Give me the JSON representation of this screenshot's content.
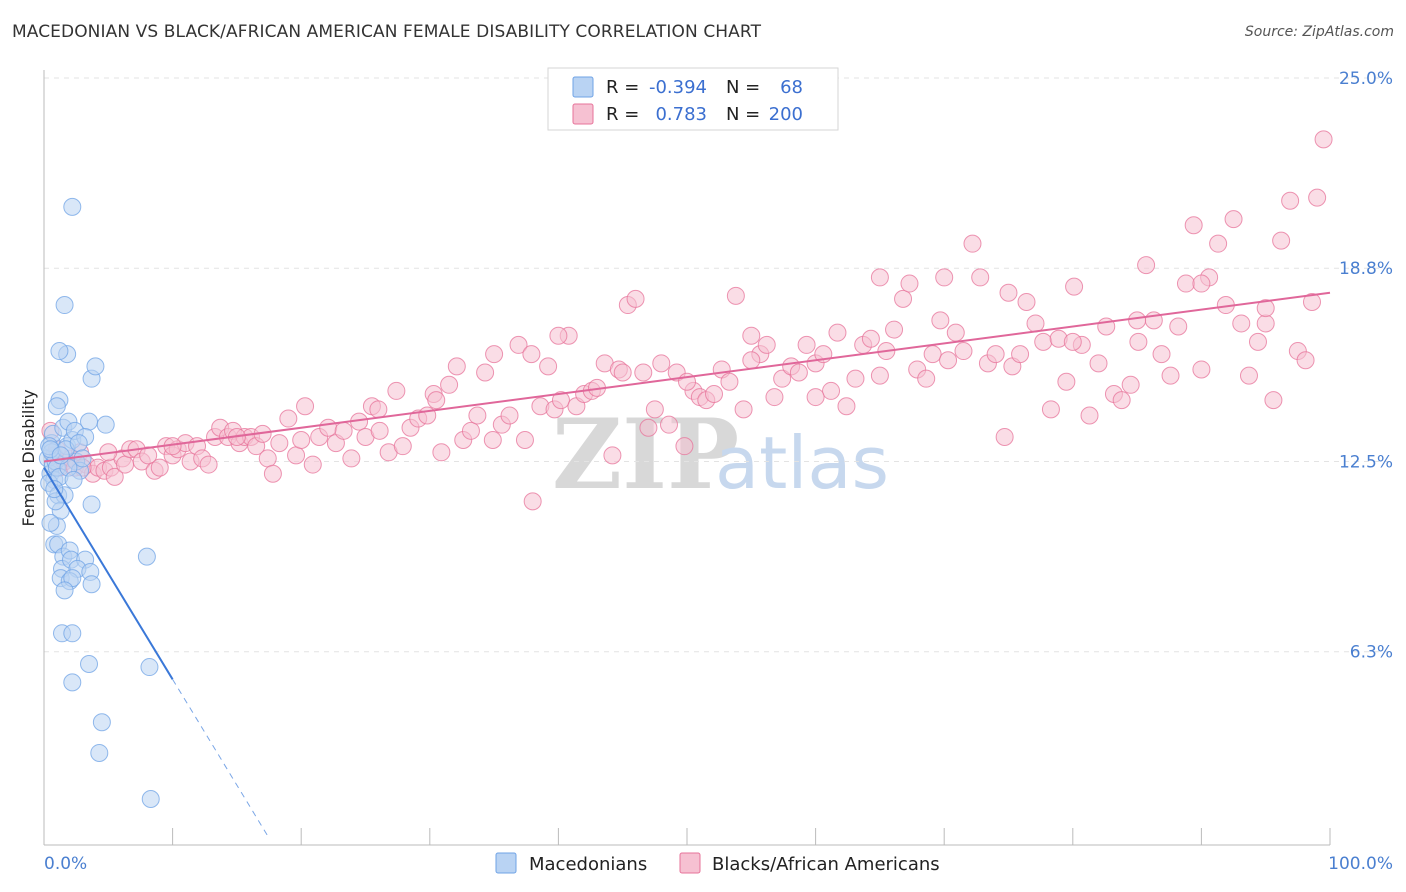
{
  "header": {
    "title": "MACEDONIAN VS BLACK/AFRICAN AMERICAN FEMALE DISABILITY CORRELATION CHART",
    "source": "Source: ZipAtlas.com"
  },
  "watermark": {
    "zip": "ZIP",
    "atlas": "atlas"
  },
  "chart_data": {
    "type": "scatter",
    "title": "MACEDONIAN VS BLACK/AFRICAN AMERICAN FEMALE DISABILITY CORRELATION CHART",
    "xlabel": "",
    "ylabel": "Female Disability",
    "xlim": [
      0,
      100
    ],
    "ylim": [
      0,
      25.0
    ],
    "x_tick_labels": [
      "0.0%",
      "100.0%"
    ],
    "y_ticks": [
      6.3,
      12.5,
      18.8,
      25.0
    ],
    "y_tick_labels": [
      "6.3%",
      "12.5%",
      "18.8%",
      "25.0%"
    ],
    "grid": true,
    "legend": {
      "position": "top-center",
      "rows": [
        {
          "r_label": "R = ",
          "r_value": "-0.394",
          "n_label": "N = ",
          "n_value": "68",
          "color": "#a9c8f0"
        },
        {
          "r_label": "R = ",
          "r_value": "0.783",
          "n_label": "N = ",
          "n_value": "200",
          "color": "#f6b8cc"
        }
      ]
    },
    "bottom_legend": [
      "Macedonians",
      "Blacks/African Americans"
    ],
    "series": [
      {
        "name": "Macedonians",
        "color": "#6fa3e6",
        "fill": "#b9d3f3",
        "trend": {
          "x0": 0.0,
          "y0": 12.3,
          "x1": 10.0,
          "y1": 5.4,
          "dash_to_x": 17.5
        },
        "points": [
          [
            0.3,
            12.6
          ],
          [
            0.5,
            12.1
          ],
          [
            0.6,
            13.1
          ],
          [
            0.7,
            12.4
          ],
          [
            0.8,
            11.9
          ],
          [
            0.4,
            11.8
          ],
          [
            0.9,
            12.5
          ],
          [
            0.6,
            12.8
          ],
          [
            1.0,
            12.3
          ],
          [
            1.2,
            12.0
          ],
          [
            0.7,
            13.4
          ],
          [
            1.5,
            13.6
          ],
          [
            1.1,
            11.4
          ],
          [
            1.6,
            11.4
          ],
          [
            1.8,
            13.0
          ],
          [
            2.2,
            13.2
          ],
          [
            2.5,
            12.5
          ],
          [
            1.9,
            13.8
          ],
          [
            1.2,
            14.5
          ],
          [
            1.0,
            14.3
          ],
          [
            3.5,
            13.8
          ],
          [
            2.4,
            13.5
          ],
          [
            3.2,
            13.3
          ],
          [
            4.8,
            13.7
          ],
          [
            3.7,
            15.2
          ],
          [
            4.0,
            15.6
          ],
          [
            1.8,
            16.0
          ],
          [
            1.2,
            16.1
          ],
          [
            1.6,
            17.6
          ],
          [
            2.2,
            20.8
          ],
          [
            3.7,
            11.1
          ],
          [
            1.0,
            10.4
          ],
          [
            1.3,
            10.9
          ],
          [
            0.8,
            9.8
          ],
          [
            1.1,
            9.8
          ],
          [
            1.5,
            9.4
          ],
          [
            2.0,
            9.6
          ],
          [
            1.4,
            9.0
          ],
          [
            2.1,
            9.3
          ],
          [
            3.2,
            9.3
          ],
          [
            2.6,
            9.0
          ],
          [
            3.6,
            8.9
          ],
          [
            1.3,
            8.7
          ],
          [
            2.0,
            8.6
          ],
          [
            2.2,
            8.7
          ],
          [
            3.7,
            8.5
          ],
          [
            1.6,
            8.3
          ],
          [
            8.0,
            9.4
          ],
          [
            1.4,
            6.9
          ],
          [
            2.2,
            6.9
          ],
          [
            3.5,
            5.9
          ],
          [
            8.2,
            5.8
          ],
          [
            2.2,
            5.3
          ],
          [
            4.5,
            4.0
          ],
          [
            4.3,
            3.0
          ],
          [
            8.3,
            1.5
          ],
          [
            0.5,
            10.5
          ],
          [
            0.9,
            11.2
          ],
          [
            0.4,
            13.0
          ],
          [
            1.7,
            12.9
          ],
          [
            2.8,
            12.2
          ],
          [
            0.5,
            12.9
          ],
          [
            1.9,
            12.3
          ],
          [
            2.7,
            13.1
          ],
          [
            0.8,
            11.6
          ],
          [
            1.3,
            12.7
          ],
          [
            3.0,
            12.6
          ],
          [
            2.3,
            11.9
          ]
        ]
      },
      {
        "name": "Blacks/African Americans",
        "color": "#e7739a",
        "fill": "#f6c1d2",
        "trend": {
          "x0": 0.0,
          "y0": 12.5,
          "x1": 100.0,
          "y1": 18.0
        },
        "points": [
          [
            0.5,
            13.5
          ],
          [
            0.8,
            12.7
          ],
          [
            1.2,
            12.3
          ],
          [
            1.6,
            12.5
          ],
          [
            2.1,
            12.6
          ],
          [
            2.4,
            12.3
          ],
          [
            2.8,
            12.8
          ],
          [
            3.3,
            12.4
          ],
          [
            3.8,
            12.1
          ],
          [
            4.2,
            12.3
          ],
          [
            4.7,
            12.2
          ],
          [
            5.2,
            12.3
          ],
          [
            5.5,
            12.0
          ],
          [
            6.1,
            12.6
          ],
          [
            6.3,
            12.4
          ],
          [
            6.7,
            12.9
          ],
          [
            7.2,
            12.9
          ],
          [
            7.6,
            12.5
          ],
          [
            8.1,
            12.7
          ],
          [
            8.6,
            12.2
          ],
          [
            9.0,
            12.3
          ],
          [
            9.5,
            13.0
          ],
          [
            10.0,
            12.7
          ],
          [
            10.4,
            12.9
          ],
          [
            11.0,
            13.1
          ],
          [
            11.4,
            12.5
          ],
          [
            11.9,
            13.0
          ],
          [
            12.3,
            12.6
          ],
          [
            12.8,
            12.4
          ],
          [
            13.3,
            13.3
          ],
          [
            13.7,
            13.6
          ],
          [
            14.3,
            13.3
          ],
          [
            14.7,
            13.5
          ],
          [
            15.2,
            13.1
          ],
          [
            15.6,
            13.3
          ],
          [
            16.1,
            13.3
          ],
          [
            16.5,
            13.0
          ],
          [
            17.0,
            13.4
          ],
          [
            17.4,
            12.6
          ],
          [
            17.8,
            12.1
          ],
          [
            18.3,
            13.1
          ],
          [
            19.0,
            13.9
          ],
          [
            19.6,
            12.7
          ],
          [
            20.3,
            14.3
          ],
          [
            20.9,
            12.4
          ],
          [
            21.4,
            13.3
          ],
          [
            22.1,
            13.6
          ],
          [
            22.7,
            13.1
          ],
          [
            23.3,
            13.5
          ],
          [
            23.9,
            12.6
          ],
          [
            24.5,
            13.8
          ],
          [
            25.0,
            13.3
          ],
          [
            25.5,
            14.3
          ],
          [
            26.1,
            13.5
          ],
          [
            26.8,
            12.8
          ],
          [
            27.4,
            14.8
          ],
          [
            27.9,
            13.0
          ],
          [
            28.5,
            13.6
          ],
          [
            29.1,
            13.9
          ],
          [
            29.8,
            14.0
          ],
          [
            30.3,
            14.7
          ],
          [
            30.9,
            12.8
          ],
          [
            31.5,
            15.0
          ],
          [
            32.1,
            15.6
          ],
          [
            32.6,
            13.2
          ],
          [
            33.2,
            13.5
          ],
          [
            33.7,
            14.0
          ],
          [
            34.3,
            15.4
          ],
          [
            34.9,
            13.2
          ],
          [
            35.6,
            13.7
          ],
          [
            36.2,
            14.0
          ],
          [
            36.9,
            16.3
          ],
          [
            37.4,
            13.2
          ],
          [
            37.9,
            16.0
          ],
          [
            38.6,
            14.3
          ],
          [
            39.2,
            15.6
          ],
          [
            39.7,
            14.2
          ],
          [
            40.2,
            14.5
          ],
          [
            40.8,
            16.6
          ],
          [
            41.4,
            14.3
          ],
          [
            42.0,
            14.7
          ],
          [
            42.6,
            14.8
          ],
          [
            43.0,
            14.9
          ],
          [
            43.6,
            15.7
          ],
          [
            44.2,
            12.7
          ],
          [
            44.7,
            15.5
          ],
          [
            45.4,
            17.6
          ],
          [
            46.0,
            17.8
          ],
          [
            46.6,
            15.4
          ],
          [
            47.0,
            13.6
          ],
          [
            47.5,
            14.2
          ],
          [
            48.0,
            15.7
          ],
          [
            48.6,
            13.7
          ],
          [
            49.2,
            15.4
          ],
          [
            49.8,
            13.0
          ],
          [
            50.5,
            14.8
          ],
          [
            51.0,
            14.6
          ],
          [
            51.5,
            14.5
          ],
          [
            52.1,
            14.7
          ],
          [
            52.7,
            15.5
          ],
          [
            53.3,
            15.1
          ],
          [
            53.8,
            17.9
          ],
          [
            54.4,
            14.2
          ],
          [
            55.0,
            16.6
          ],
          [
            55.7,
            16.0
          ],
          [
            56.2,
            16.3
          ],
          [
            56.8,
            14.6
          ],
          [
            57.4,
            15.2
          ],
          [
            58.1,
            15.6
          ],
          [
            58.7,
            15.4
          ],
          [
            59.3,
            16.3
          ],
          [
            60.0,
            15.7
          ],
          [
            60.6,
            16.0
          ],
          [
            61.2,
            14.8
          ],
          [
            61.7,
            16.7
          ],
          [
            62.4,
            14.3
          ],
          [
            63.1,
            15.2
          ],
          [
            63.7,
            16.3
          ],
          [
            64.3,
            16.5
          ],
          [
            65.0,
            15.3
          ],
          [
            65.5,
            16.1
          ],
          [
            66.1,
            16.8
          ],
          [
            66.8,
            17.8
          ],
          [
            67.3,
            18.3
          ],
          [
            67.9,
            15.5
          ],
          [
            68.6,
            15.2
          ],
          [
            69.1,
            16.0
          ],
          [
            69.7,
            17.1
          ],
          [
            70.3,
            15.8
          ],
          [
            70.9,
            16.7
          ],
          [
            71.5,
            16.1
          ],
          [
            72.2,
            19.6
          ],
          [
            72.8,
            18.5
          ],
          [
            73.4,
            15.7
          ],
          [
            74.0,
            16.0
          ],
          [
            74.7,
            13.3
          ],
          [
            75.3,
            15.6
          ],
          [
            75.9,
            16.0
          ],
          [
            76.4,
            17.7
          ],
          [
            77.1,
            17.0
          ],
          [
            77.7,
            16.4
          ],
          [
            78.3,
            14.2
          ],
          [
            78.9,
            16.5
          ],
          [
            79.5,
            15.1
          ],
          [
            80.1,
            18.2
          ],
          [
            80.7,
            16.3
          ],
          [
            81.3,
            14.0
          ],
          [
            82.0,
            15.7
          ],
          [
            82.6,
            16.9
          ],
          [
            83.2,
            14.7
          ],
          [
            83.8,
            14.5
          ],
          [
            84.5,
            15.0
          ],
          [
            85.1,
            16.4
          ],
          [
            85.7,
            18.9
          ],
          [
            86.3,
            17.1
          ],
          [
            86.9,
            16.0
          ],
          [
            87.6,
            15.3
          ],
          [
            88.2,
            16.9
          ],
          [
            88.8,
            18.3
          ],
          [
            89.4,
            20.2
          ],
          [
            90.0,
            15.5
          ],
          [
            90.6,
            18.5
          ],
          [
            91.3,
            19.6
          ],
          [
            91.9,
            17.6
          ],
          [
            92.5,
            20.4
          ],
          [
            93.1,
            17.0
          ],
          [
            93.7,
            15.3
          ],
          [
            94.4,
            16.4
          ],
          [
            95.0,
            17.0
          ],
          [
            95.6,
            14.5
          ],
          [
            96.2,
            19.7
          ],
          [
            96.9,
            21.0
          ],
          [
            97.5,
            16.1
          ],
          [
            98.1,
            15.8
          ],
          [
            98.6,
            17.7
          ],
          [
            99.0,
            21.1
          ],
          [
            99.5,
            23.0
          ],
          [
            30.5,
            14.5
          ],
          [
            35.0,
            16.0
          ],
          [
            40.0,
            16.6
          ],
          [
            45.0,
            15.4
          ],
          [
            50.0,
            15.1
          ],
          [
            55.0,
            15.8
          ],
          [
            60.0,
            14.6
          ],
          [
            65.0,
            18.5
          ],
          [
            70.0,
            18.5
          ],
          [
            75.0,
            18.0
          ],
          [
            80.0,
            16.4
          ],
          [
            85.0,
            17.1
          ],
          [
            90.0,
            18.3
          ],
          [
            95.0,
            17.5
          ],
          [
            26.0,
            14.2
          ],
          [
            38.0,
            11.2
          ],
          [
            20.0,
            13.2
          ],
          [
            15.0,
            13.3
          ],
          [
            10.0,
            13.0
          ],
          [
            5.0,
            12.8
          ],
          [
            1.0,
            12.9
          ],
          [
            3.0,
            12.3
          ]
        ]
      }
    ]
  }
}
